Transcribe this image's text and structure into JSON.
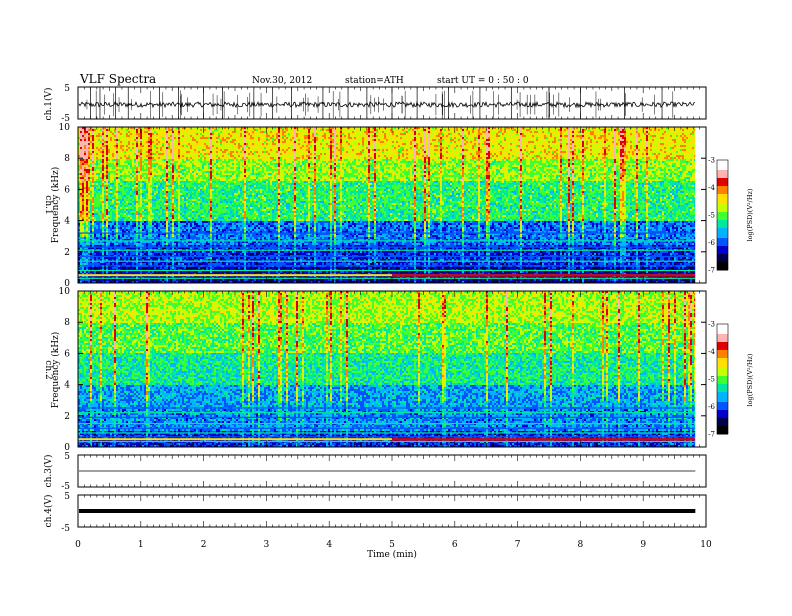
{
  "header": {
    "title": "VLF  Spectra",
    "date": "Nov.30, 2012",
    "station": "station=ATH",
    "start": "start  UT =  0 : 50 : 0"
  },
  "colors": {
    "spectrogram_scale": [
      "#00004a",
      "#0000cc",
      "#0066ff",
      "#00ccff",
      "#00e070",
      "#66ff00",
      "#e8e800",
      "#ff9900",
      "#e00000",
      "#ffffff"
    ]
  },
  "chart_data": [
    {
      "type": "line",
      "panel": "ch1-waveform",
      "ylabel": "ch.1(V)",
      "ylim": [
        -5,
        5
      ],
      "yticks": [
        "5",
        "-5"
      ],
      "xlim": [
        0,
        10
      ],
      "baseline": -0.5,
      "spikes_min": [
        0.2,
        0.35,
        0.6,
        0.8,
        1.3,
        1.6,
        2.0,
        2.3,
        2.8,
        3.1,
        3.4,
        3.9,
        4.3,
        4.6,
        5.0,
        5.4,
        5.9,
        6.4,
        6.9,
        7.5,
        8.0,
        8.7,
        9.3
      ]
    },
    {
      "type": "heatmap",
      "panel": "ch1-spectrogram",
      "ylabel_outer": "ch.1",
      "ylabel": "Frequency  (kHz)",
      "ylim": [
        0,
        10
      ],
      "yticks": [
        "0",
        "2",
        "4",
        "6",
        "8",
        "10"
      ],
      "xlim": [
        0,
        9.83
      ],
      "colorbar": {
        "label": "log(PSD)(V²/Hz)",
        "range": [
          -7,
          -3
        ],
        "ticks": [
          "-3",
          "-4",
          "-5",
          "-6",
          "-7"
        ]
      },
      "bands": [
        {
          "kHz": [
            8.0,
            10.0
          ],
          "logpsd": -4.4
        },
        {
          "kHz": [
            6.5,
            8.0
          ],
          "logpsd": -4.8
        },
        {
          "kHz": [
            4.0,
            6.5
          ],
          "logpsd": -5.2
        },
        {
          "kHz": [
            2.5,
            4.0
          ],
          "logpsd": -6.0
        },
        {
          "kHz": [
            1.0,
            2.5
          ],
          "logpsd": -6.3
        },
        {
          "kHz": [
            0.0,
            1.0
          ],
          "logpsd": -6.6
        }
      ],
      "lines_kHz": [
        0.3,
        0.55,
        0.8,
        1.1,
        1.4,
        1.7,
        2.1,
        2.3,
        2.7,
        3.2
      ],
      "line_shift_min": 5.0
    },
    {
      "type": "heatmap",
      "panel": "ch2-spectrogram",
      "ylabel_outer": "ch.2",
      "ylabel": "Frequency  (kHz)",
      "ylim": [
        0,
        10
      ],
      "yticks": [
        "0",
        "2",
        "4",
        "6",
        "8",
        "10"
      ],
      "xlim": [
        0,
        9.83
      ],
      "colorbar": {
        "label": "log(PSD)(V²/Hz)",
        "range": [
          -7,
          -3
        ],
        "ticks": [
          "-3",
          "-4",
          "-5",
          "-6",
          "-7"
        ]
      },
      "bands": [
        {
          "kHz": [
            8.0,
            10.0
          ],
          "logpsd": -4.7
        },
        {
          "kHz": [
            6.0,
            8.0
          ],
          "logpsd": -5.0
        },
        {
          "kHz": [
            4.0,
            6.0
          ],
          "logpsd": -5.3
        },
        {
          "kHz": [
            2.5,
            4.0
          ],
          "logpsd": -5.8
        },
        {
          "kHz": [
            1.0,
            2.5
          ],
          "logpsd": -5.9
        },
        {
          "kHz": [
            0.0,
            1.0
          ],
          "logpsd": -6.3
        }
      ],
      "lines_kHz": [
        0.35,
        0.65,
        0.9,
        1.2,
        1.5,
        1.9,
        2.2,
        2.5
      ],
      "line_shift_min": 5.0
    },
    {
      "type": "line",
      "panel": "ch3-waveform",
      "ylabel": "ch.3(V)",
      "ylim": [
        -5,
        5
      ],
      "yticks": [
        "5",
        "-5"
      ],
      "xlim": [
        0,
        9.83
      ],
      "baseline": 0
    },
    {
      "type": "line",
      "panel": "ch4-waveform",
      "ylabel": "ch.4(V)",
      "ylim": [
        -5,
        5
      ],
      "yticks": [
        "5",
        "-5"
      ],
      "xlim": [
        0,
        9.83
      ],
      "baseline": 0,
      "xlabel": "Time  (min)",
      "xticks": [
        "0",
        "1",
        "2",
        "3",
        "4",
        "5",
        "6",
        "7",
        "8",
        "9",
        "10"
      ]
    }
  ]
}
